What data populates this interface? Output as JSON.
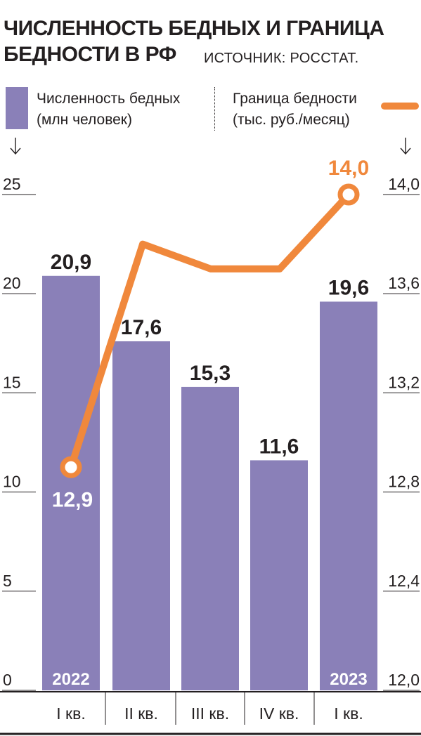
{
  "title": {
    "line1": "ЧИСЛЕННОСТЬ БЕДНЫХ И ГРАНИЦА",
    "line2": "БЕДНОСТИ В РФ"
  },
  "source": "ИСТОЧНИК: РОССТАТ.",
  "legend": {
    "bars_line1": "Численность бедных",
    "bars_line2": "(млн человек)",
    "line_line1": "Граница бедности",
    "line_line2": "(тыс. руб./месяц)"
  },
  "colors": {
    "bar": "#8a80b8",
    "line": "#f0883c",
    "text": "#231f20",
    "white": "#ffffff"
  },
  "chart_data": {
    "type": "bar",
    "categories": [
      "I кв.",
      "II кв.",
      "III кв.",
      "IV кв.",
      "I кв."
    ],
    "year_labels": [
      "2022",
      "",
      "",
      "",
      "2023"
    ],
    "series": [
      {
        "name": "Численность бедных (млн человек)",
        "type": "bar",
        "axis": "left",
        "values": [
          20.9,
          17.6,
          15.3,
          11.6,
          19.6
        ],
        "labels": [
          "20,9",
          "17,6",
          "15,3",
          "11,6",
          "19,6"
        ]
      },
      {
        "name": "Граница бедности (тыс. руб./месяц)",
        "type": "line",
        "axis": "right",
        "values": [
          12.9,
          13.8,
          13.7,
          13.7,
          14.0
        ],
        "labels": [
          "12,9",
          "",
          "",
          "",
          "14,0"
        ]
      }
    ],
    "left_axis": {
      "ylim": [
        0,
        25
      ],
      "ticks": [
        "0",
        "5",
        "10",
        "15",
        "20",
        "25"
      ]
    },
    "right_axis": {
      "ylim": [
        12.0,
        14.0
      ],
      "ticks": [
        "12,0",
        "12,4",
        "12,8",
        "13,2",
        "13,6",
        "14,0"
      ]
    },
    "grid": false,
    "legend": "top"
  }
}
